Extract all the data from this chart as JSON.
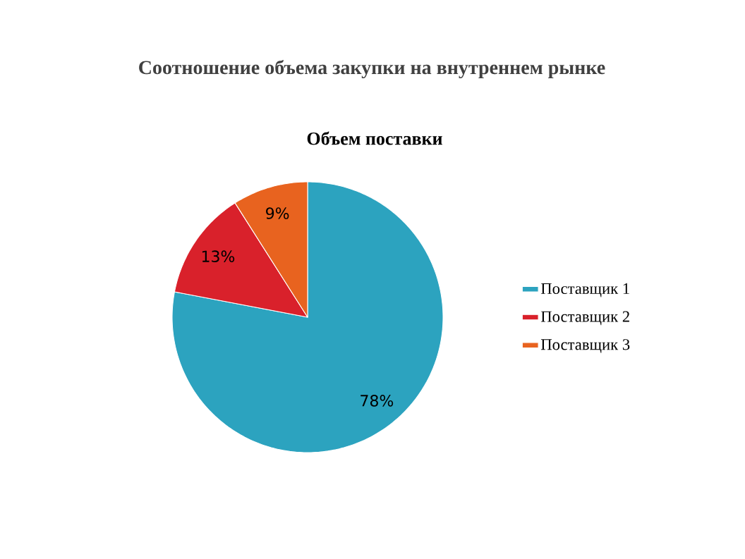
{
  "chart_data": {
    "type": "pie",
    "title": "Соотношение объема закупки на внутреннем рынке",
    "subtitle": "Объем поставки",
    "categories": [
      "Поставщик 1",
      "Поставщик 2",
      "Поставщик 3"
    ],
    "values": [
      78,
      13,
      9
    ],
    "colors": [
      "#2ca3bf",
      "#d9212b",
      "#e8631f"
    ],
    "value_labels": [
      "78%",
      "13%",
      "9%"
    ],
    "legend": "right"
  }
}
